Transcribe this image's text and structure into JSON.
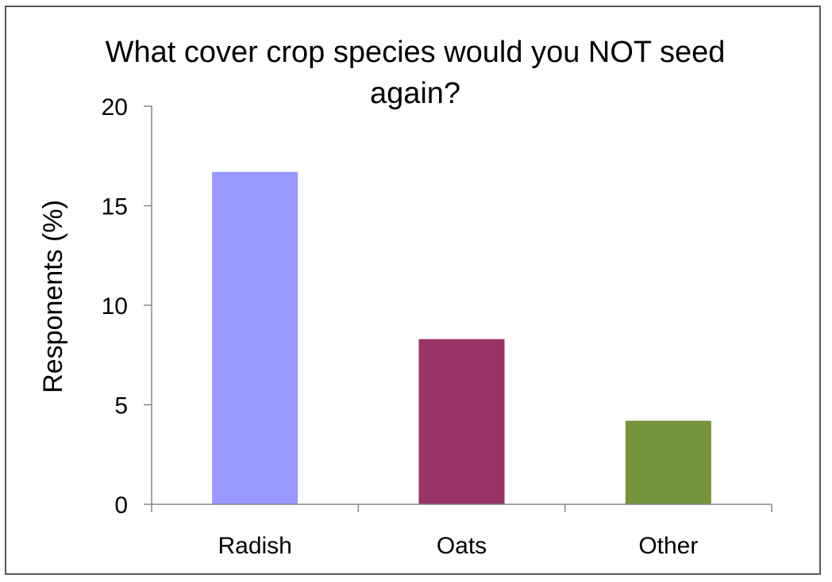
{
  "chart_data": {
    "type": "bar",
    "title_lines": [
      "What cover crop species would you NOT seed",
      "again?"
    ],
    "xlabel": "",
    "ylabel": "Responents (%)",
    "categories": [
      "Radish",
      "Oats",
      "Other"
    ],
    "values": [
      16.7,
      8.3,
      4.2
    ],
    "colors": [
      "#9999ff",
      "#993366",
      "#77933c"
    ],
    "ylim": [
      0,
      20
    ],
    "yticks": [
      "0",
      "5",
      "10",
      "15",
      "20"
    ],
    "grid": false,
    "legend": "none"
  }
}
